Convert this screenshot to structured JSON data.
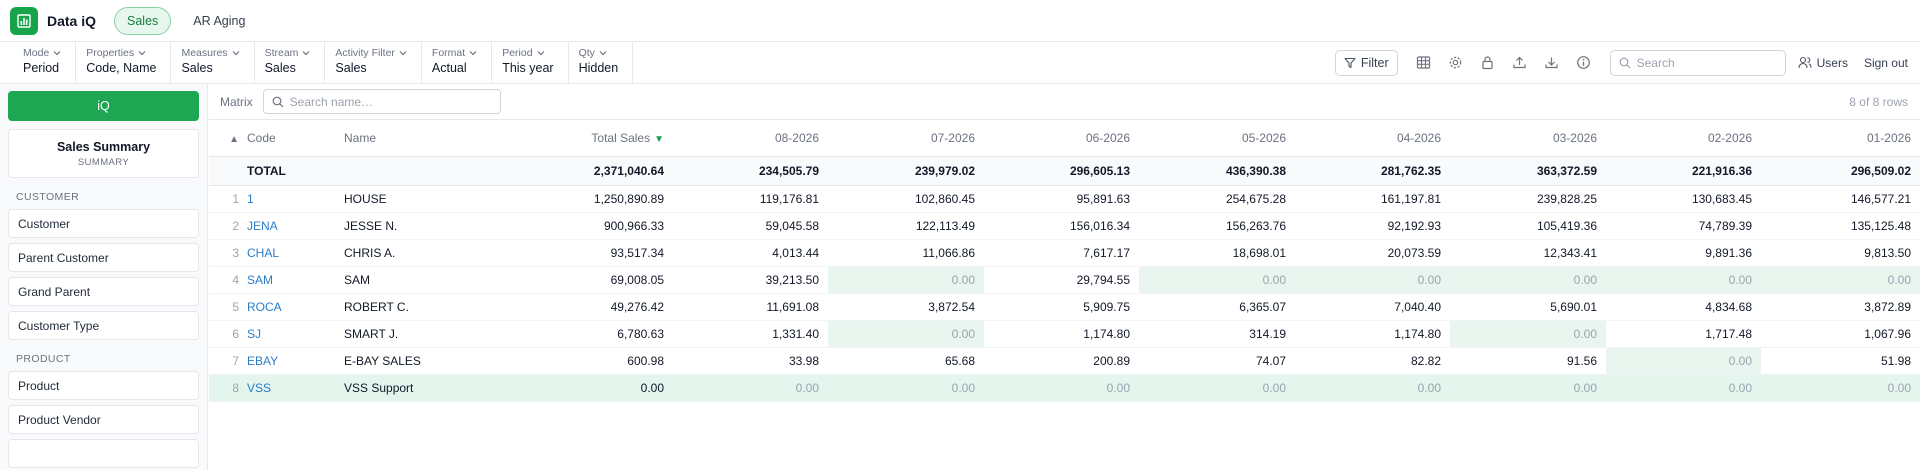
{
  "app": {
    "title": "Data iQ",
    "nav_active": "Sales",
    "nav_other": "AR Aging"
  },
  "controls": [
    {
      "label": "Mode",
      "value": "Period"
    },
    {
      "label": "Properties",
      "value": "Code, Name"
    },
    {
      "label": "Measures",
      "value": "Sales"
    },
    {
      "label": "Stream",
      "value": "Sales"
    },
    {
      "label": "Activity Filter",
      "value": "Sales"
    },
    {
      "label": "Format",
      "value": "Actual"
    },
    {
      "label": "Period",
      "value": "This year"
    },
    {
      "label": "Qty",
      "value": "Hidden"
    }
  ],
  "toolbar": {
    "filter_label": "Filter",
    "search_placeholder": "Search",
    "users_label": "Users",
    "signout_label": "Sign out",
    "icons": [
      "table-icon",
      "gear-icon",
      "lock-icon",
      "upload-icon",
      "download-icon",
      "info-icon"
    ]
  },
  "sidebar": {
    "iq_label": "iQ",
    "summary_title": "Sales Summary",
    "summary_sub": "SUMMARY",
    "sections": [
      {
        "title": "CUSTOMER",
        "items": [
          "Customer",
          "Parent Customer",
          "Grand Parent",
          "Customer Type"
        ]
      },
      {
        "title": "PRODUCT",
        "items": [
          "Product",
          "Product Vendor",
          ""
        ]
      }
    ]
  },
  "matrix": {
    "label": "Matrix",
    "search_placeholder": "Search name…",
    "rows_count": "8 of 8 rows",
    "sort_indicator": "▲",
    "columns": [
      "Code",
      "Name",
      "Total Sales",
      "08-2026",
      "07-2026",
      "06-2026",
      "05-2026",
      "04-2026",
      "03-2026",
      "02-2026",
      "01-2026"
    ],
    "total_label": "TOTAL",
    "totals": [
      "2,371,040.64",
      "234,505.79",
      "239,979.02",
      "296,605.13",
      "436,390.38",
      "281,762.35",
      "363,372.59",
      "221,916.36",
      "296,509.02"
    ],
    "rows": [
      {
        "idx": "1",
        "code": "1",
        "name": "HOUSE",
        "values": [
          "1,250,890.89",
          "119,176.81",
          "102,860.45",
          "95,891.63",
          "254,675.28",
          "161,197.81",
          "239,828.25",
          "130,683.45",
          "146,577.21"
        ]
      },
      {
        "idx": "2",
        "code": "JENA",
        "name": "JESSE N.",
        "values": [
          "900,966.33",
          "59,045.58",
          "122,113.49",
          "156,016.34",
          "156,263.76",
          "92,192.93",
          "105,419.36",
          "74,789.39",
          "135,125.48"
        ]
      },
      {
        "idx": "3",
        "code": "CHAL",
        "name": "CHRIS A.",
        "values": [
          "93,517.34",
          "4,013.44",
          "11,066.86",
          "7,617.17",
          "18,698.01",
          "20,073.59",
          "12,343.41",
          "9,891.36",
          "9,813.50"
        ]
      },
      {
        "idx": "4",
        "code": "SAM",
        "name": "SAM",
        "values": [
          "69,008.05",
          "39,213.50",
          "0.00",
          "29,794.55",
          "0.00",
          "0.00",
          "0.00",
          "0.00",
          "0.00"
        ]
      },
      {
        "idx": "5",
        "code": "ROCA",
        "name": "ROBERT C.",
        "values": [
          "49,276.42",
          "11,691.08",
          "3,872.54",
          "5,909.75",
          "6,365.07",
          "7,040.40",
          "5,690.01",
          "4,834.68",
          "3,872.89"
        ]
      },
      {
        "idx": "6",
        "code": "SJ",
        "name": "SMART J.",
        "values": [
          "6,780.63",
          "1,331.40",
          "0.00",
          "1,174.80",
          "314.19",
          "1,174.80",
          "0.00",
          "1,717.48",
          "1,067.96"
        ]
      },
      {
        "idx": "7",
        "code": "EBAY",
        "name": "E-BAY SALES",
        "values": [
          "600.98",
          "33.98",
          "65.68",
          "200.89",
          "74.07",
          "82.82",
          "91.56",
          "0.00",
          "51.98"
        ]
      },
      {
        "idx": "8",
        "code": "VSS",
        "name": "VSS Support",
        "values": [
          "0.00",
          "0.00",
          "0.00",
          "0.00",
          "0.00",
          "0.00",
          "0.00",
          "0.00",
          "0.00"
        ],
        "highlighted": true
      }
    ]
  }
}
